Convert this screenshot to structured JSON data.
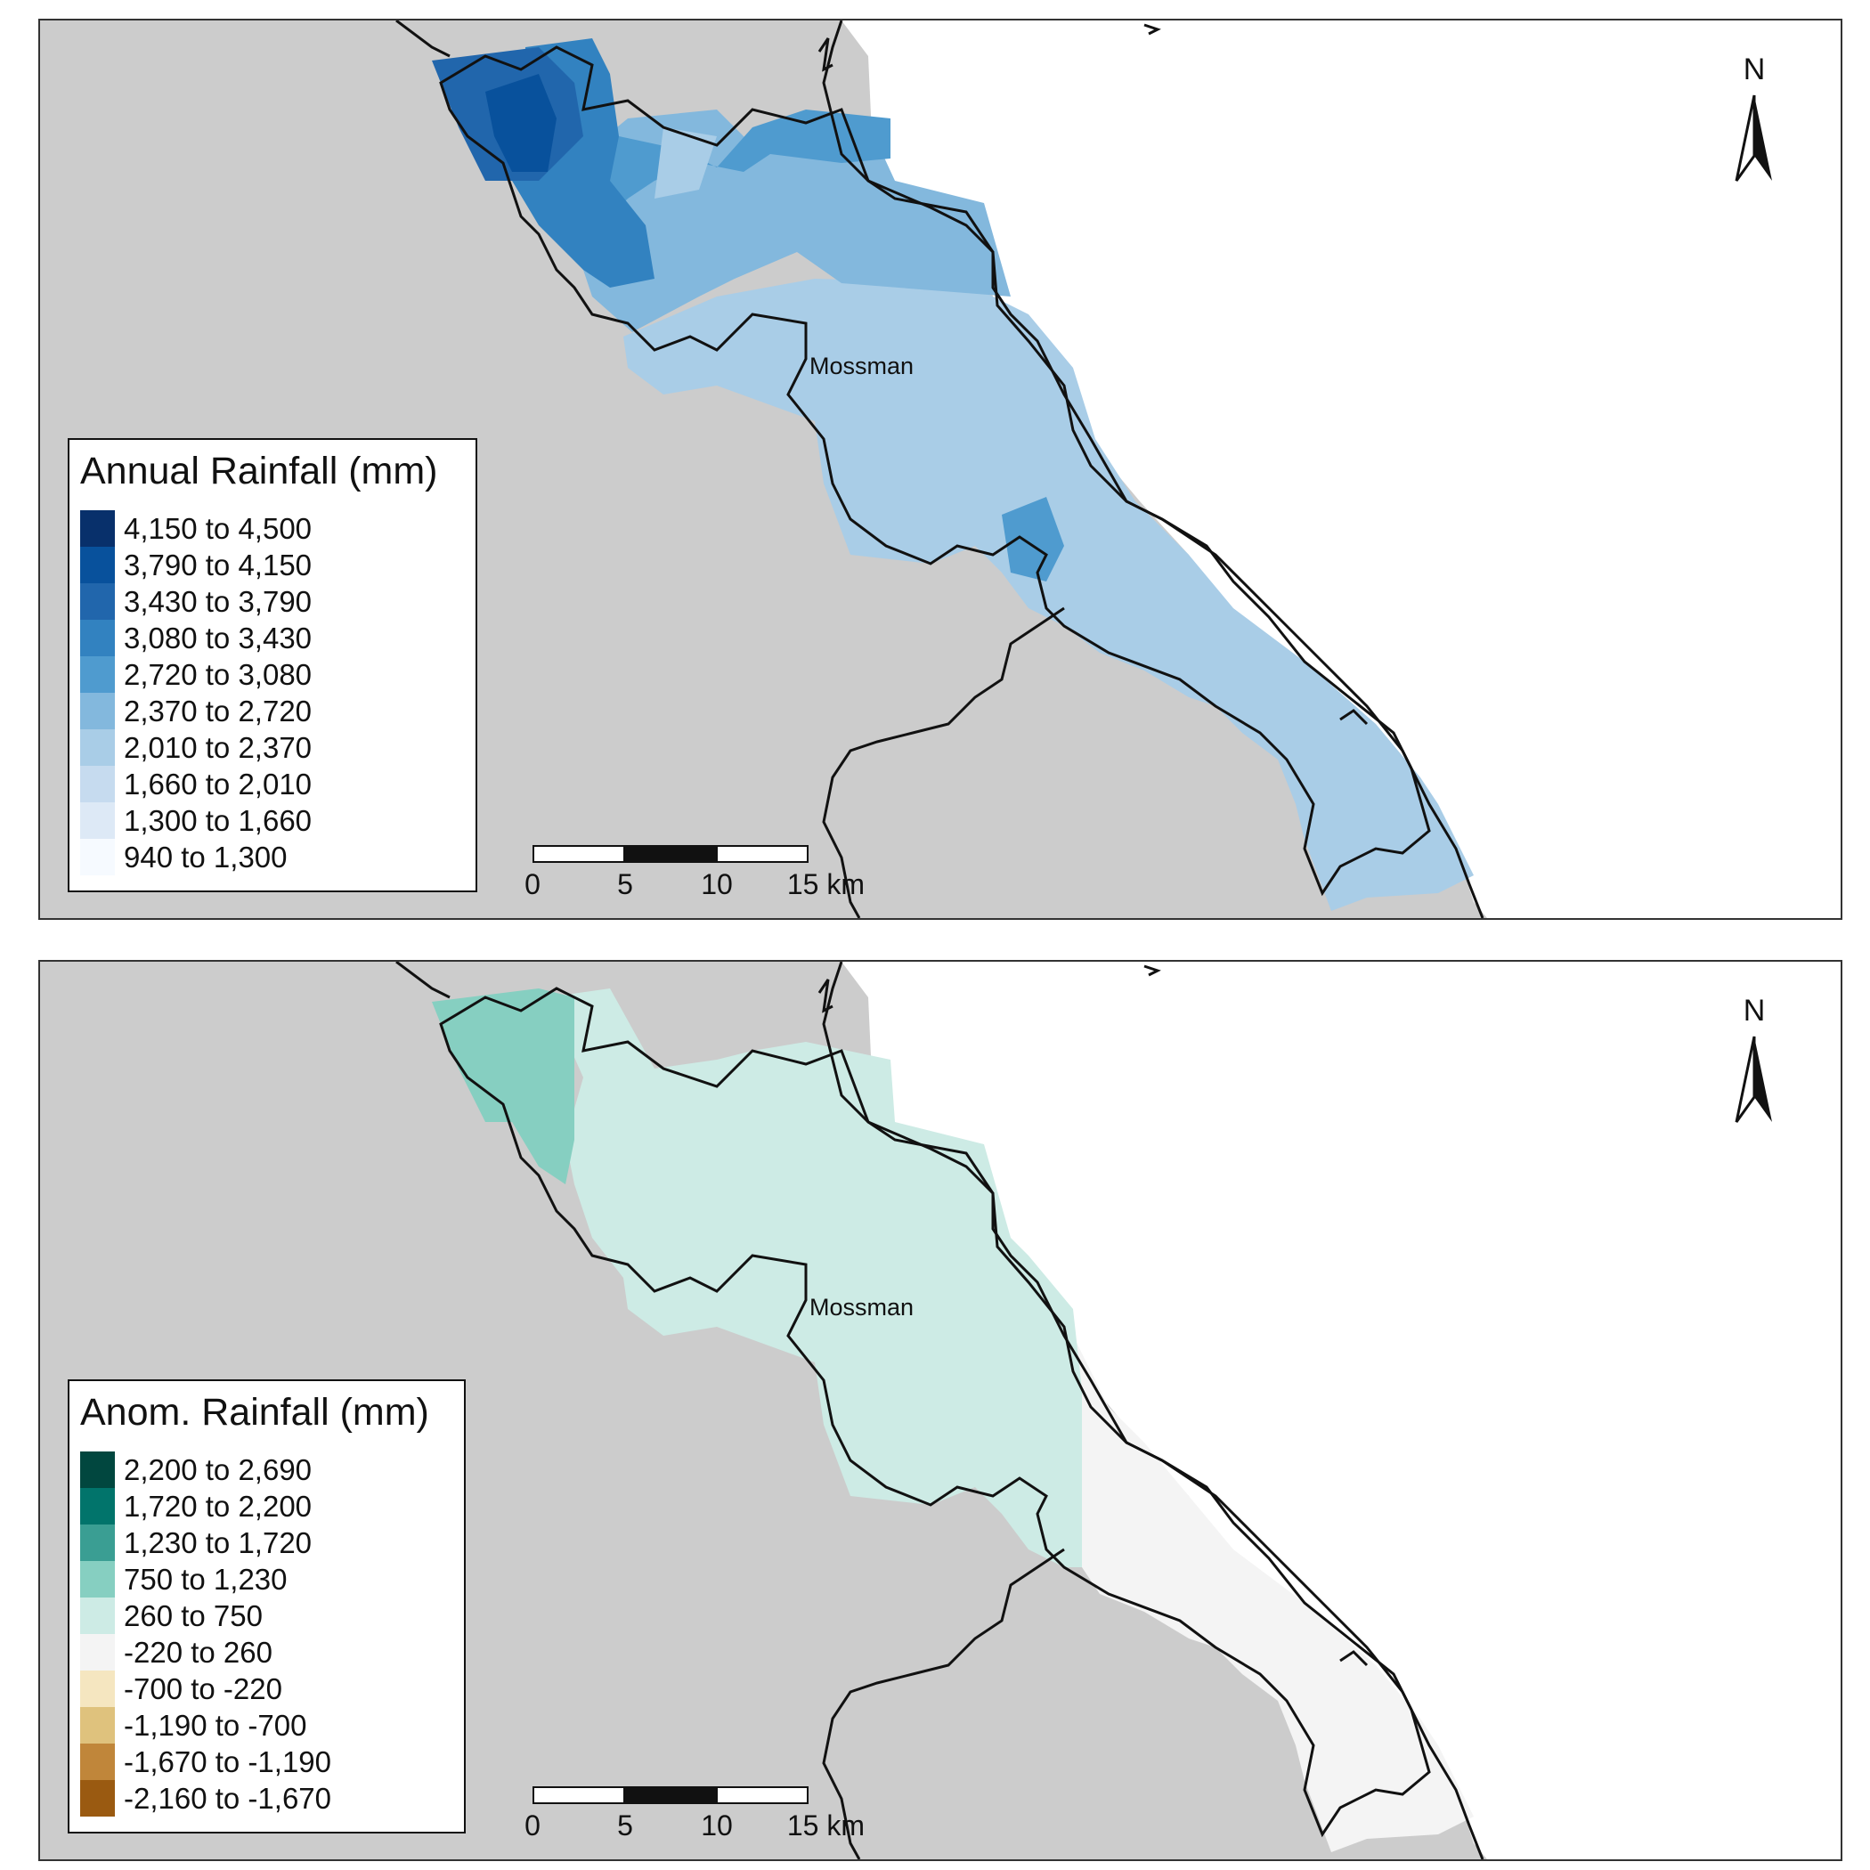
{
  "panels": [
    {
      "id": "annual",
      "town_label": "Mossman",
      "north_label": "N",
      "legend_title": "Annual Rainfall (mm)",
      "legend_items": [
        {
          "label": "4,150 to 4,500",
          "color": "#08306b"
        },
        {
          "label": "3,790 to 4,150",
          "color": "#08519c"
        },
        {
          "label": "3,430 to 3,790",
          "color": "#2166ac"
        },
        {
          "label": "3,080 to 3,430",
          "color": "#3282c0"
        },
        {
          "label": "2,720 to 3,080",
          "color": "#4f9bcf"
        },
        {
          "label": "2,370 to 2,720",
          "color": "#83b8dd"
        },
        {
          "label": "2,010 to 2,370",
          "color": "#a9cde7"
        },
        {
          "label": "1,660 to 2,010",
          "color": "#c6dbef"
        },
        {
          "label": "1,300 to 1,660",
          "color": "#dde9f6"
        },
        {
          "label": "940 to 1,300",
          "color": "#f6faff"
        }
      ],
      "scale_ticks": [
        "0",
        "5",
        "10",
        "15 km"
      ]
    },
    {
      "id": "anomaly",
      "town_label": "Mossman",
      "north_label": "N",
      "legend_title": "Anom. Rainfall (mm)",
      "legend_items": [
        {
          "label": "2,200 to 2,690",
          "color": "#01473f"
        },
        {
          "label": "1,720 to 2,200",
          "color": "#01746b"
        },
        {
          "label": "1,230 to 1,720",
          "color": "#3a9e93"
        },
        {
          "label": "750 to 1,230",
          "color": "#86cfc1"
        },
        {
          "label": "260 to 750",
          "color": "#cdebe5"
        },
        {
          "label": "-220 to 260",
          "color": "#f4f4f4"
        },
        {
          "label": "-700 to -220",
          "color": "#f5e6c0"
        },
        {
          "label": "-1,190 to -700",
          "color": "#dfc27d"
        },
        {
          "label": "-1,670 to -1,190",
          "color": "#c0863a"
        },
        {
          "label": "-2,160 to -1,670",
          "color": "#9a5a11"
        }
      ],
      "scale_ticks": [
        "0",
        "5",
        "10",
        "15 km"
      ]
    }
  ]
}
